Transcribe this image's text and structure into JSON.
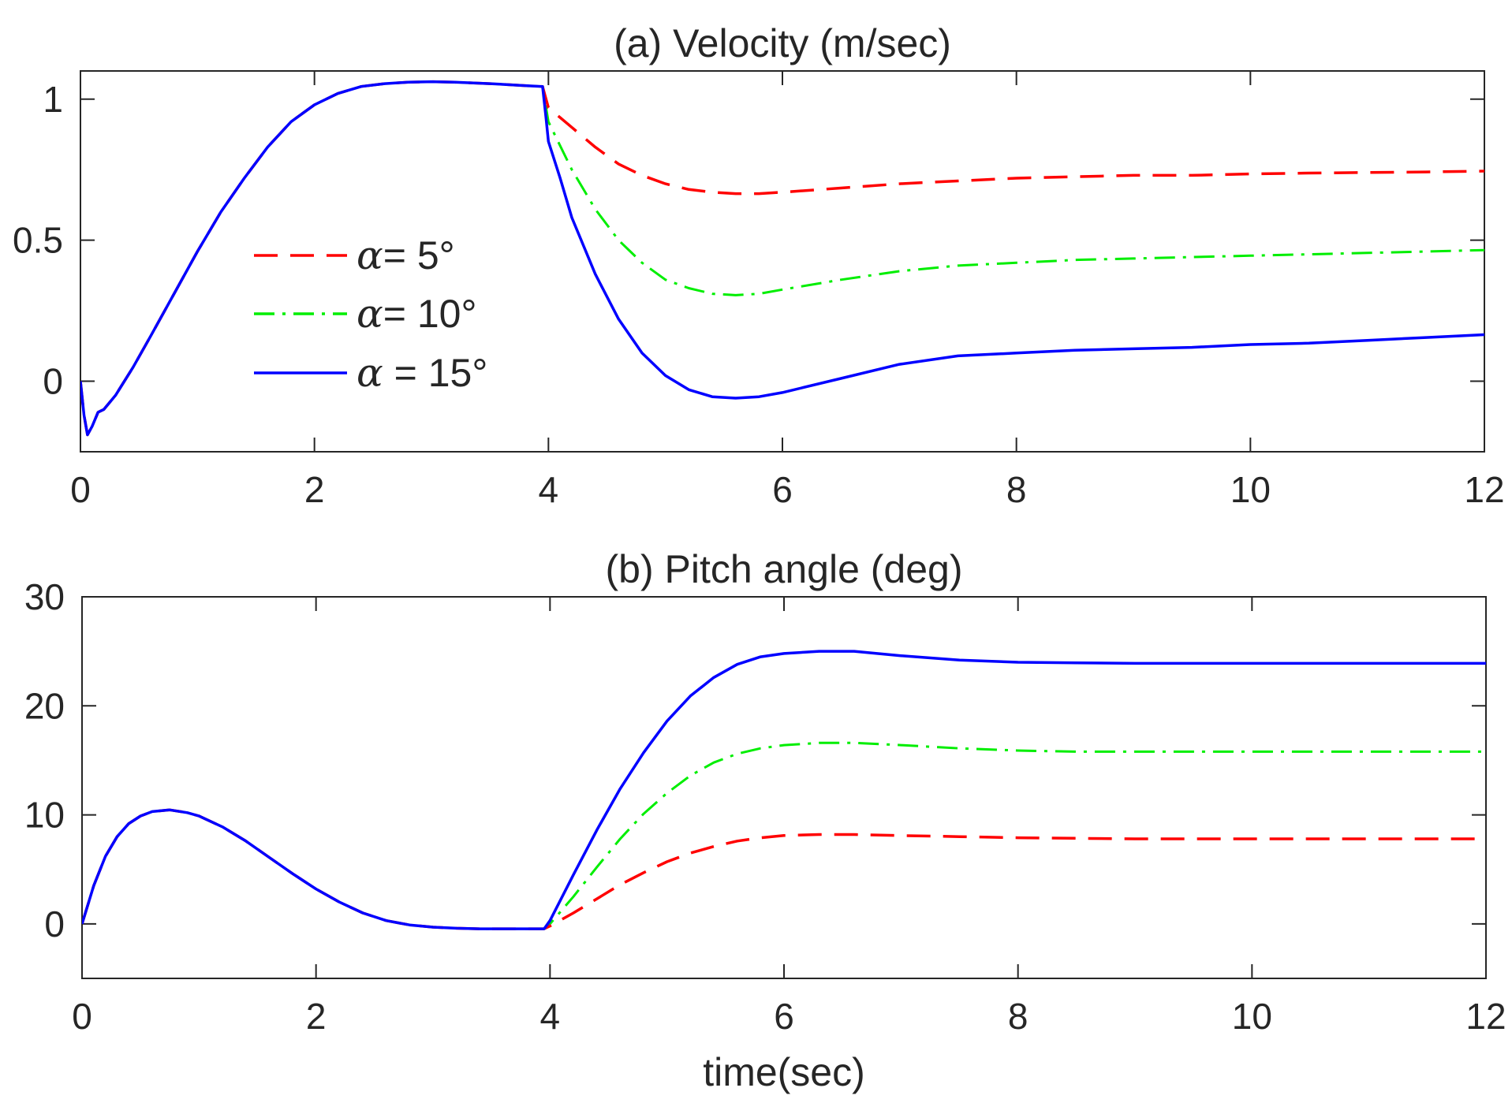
{
  "chart_data": [
    {
      "type": "line",
      "title": "(a) Velocity (m/sec)",
      "xlabel": "",
      "ylabel": "",
      "xlim": [
        0,
        12
      ],
      "ylim": [
        -0.25,
        1.1
      ],
      "xticks": [
        0,
        2,
        4,
        6,
        8,
        10,
        12
      ],
      "xtick_labels": [
        "0",
        "2",
        "4",
        "6",
        "8",
        "10",
        "12"
      ],
      "yticks": [
        0,
        0.5,
        1
      ],
      "ytick_labels": [
        "0",
        "0.5",
        "1"
      ],
      "grid": false,
      "legend": {
        "position": "center-left",
        "entries": [
          {
            "symbol": "α",
            "text": "= 5°"
          },
          {
            "symbol": "α",
            "text": "= 10°"
          },
          {
            "symbol": "α",
            "text": " = 15°"
          }
        ]
      },
      "series": [
        {
          "name": "α= 5°",
          "color": "#ff0000",
          "style": "dashed",
          "x": [
            0,
            0.03,
            0.06,
            0.1,
            0.15,
            0.2,
            0.3,
            0.45,
            0.6,
            0.8,
            1.0,
            1.2,
            1.4,
            1.6,
            1.8,
            2.0,
            2.2,
            2.4,
            2.6,
            2.8,
            3.0,
            3.2,
            3.5,
            3.8,
            3.95,
            4.0,
            4.2,
            4.4,
            4.6,
            4.8,
            5.0,
            5.2,
            5.4,
            5.6,
            5.8,
            6.0,
            6.5,
            7.0,
            7.5,
            8.0,
            8.5,
            9.0,
            9.5,
            10.0,
            10.5,
            11.0,
            11.5,
            12.0
          ],
          "y": [
            0,
            -0.12,
            -0.19,
            -0.16,
            -0.11,
            -0.1,
            -0.05,
            0.05,
            0.16,
            0.31,
            0.46,
            0.6,
            0.72,
            0.83,
            0.92,
            0.98,
            1.02,
            1.045,
            1.055,
            1.06,
            1.062,
            1.06,
            1.055,
            1.048,
            1.045,
            0.97,
            0.9,
            0.83,
            0.77,
            0.73,
            0.7,
            0.68,
            0.67,
            0.665,
            0.665,
            0.67,
            0.685,
            0.7,
            0.71,
            0.72,
            0.725,
            0.73,
            0.73,
            0.735,
            0.738,
            0.74,
            0.742,
            0.745
          ]
        },
        {
          "name": "α= 10°",
          "color": "#00ee00",
          "style": "dashdot",
          "x": [
            0,
            0.03,
            0.06,
            0.1,
            0.15,
            0.2,
            0.3,
            0.45,
            0.6,
            0.8,
            1.0,
            1.2,
            1.4,
            1.6,
            1.8,
            2.0,
            2.2,
            2.4,
            2.6,
            2.8,
            3.0,
            3.2,
            3.5,
            3.8,
            3.95,
            4.0,
            4.2,
            4.4,
            4.6,
            4.8,
            5.0,
            5.2,
            5.4,
            5.6,
            5.8,
            6.0,
            6.5,
            7.0,
            7.5,
            8.0,
            8.5,
            9.0,
            9.5,
            10.0,
            10.5,
            11.0,
            11.5,
            12.0
          ],
          "y": [
            0,
            -0.12,
            -0.19,
            -0.16,
            -0.11,
            -0.1,
            -0.05,
            0.05,
            0.16,
            0.31,
            0.46,
            0.6,
            0.72,
            0.83,
            0.92,
            0.98,
            1.02,
            1.045,
            1.055,
            1.06,
            1.062,
            1.06,
            1.055,
            1.048,
            1.045,
            0.92,
            0.75,
            0.61,
            0.5,
            0.42,
            0.36,
            0.33,
            0.31,
            0.305,
            0.31,
            0.325,
            0.36,
            0.39,
            0.41,
            0.42,
            0.43,
            0.435,
            0.44,
            0.445,
            0.45,
            0.455,
            0.46,
            0.465
          ]
        },
        {
          "name": "α = 15°",
          "color": "#0000ff",
          "style": "solid",
          "x": [
            0,
            0.03,
            0.06,
            0.1,
            0.15,
            0.2,
            0.3,
            0.45,
            0.6,
            0.8,
            1.0,
            1.2,
            1.4,
            1.6,
            1.8,
            2.0,
            2.2,
            2.4,
            2.6,
            2.8,
            3.0,
            3.2,
            3.5,
            3.8,
            3.95,
            3.98,
            4.0,
            4.1,
            4.2,
            4.4,
            4.6,
            4.8,
            5.0,
            5.2,
            5.4,
            5.6,
            5.8,
            6.0,
            6.5,
            7.0,
            7.5,
            8.0,
            8.5,
            9.0,
            9.5,
            10.0,
            10.5,
            11.0,
            11.5,
            12.0
          ],
          "y": [
            0,
            -0.12,
            -0.19,
            -0.16,
            -0.11,
            -0.1,
            -0.05,
            0.05,
            0.16,
            0.31,
            0.46,
            0.6,
            0.72,
            0.83,
            0.92,
            0.98,
            1.02,
            1.045,
            1.055,
            1.06,
            1.062,
            1.06,
            1.055,
            1.048,
            1.045,
            0.93,
            0.85,
            0.72,
            0.58,
            0.38,
            0.22,
            0.1,
            0.02,
            -0.03,
            -0.055,
            -0.06,
            -0.055,
            -0.04,
            0.01,
            0.06,
            0.09,
            0.1,
            0.11,
            0.115,
            0.12,
            0.13,
            0.135,
            0.145,
            0.155,
            0.165
          ]
        }
      ]
    },
    {
      "type": "line",
      "title": "(b) Pitch angle (deg)",
      "xlabel": "time(sec)",
      "ylabel": "",
      "xlim": [
        0,
        12
      ],
      "ylim": [
        -5,
        30
      ],
      "xticks": [
        0,
        2,
        4,
        6,
        8,
        10,
        12
      ],
      "xtick_labels": [
        "0",
        "2",
        "4",
        "6",
        "8",
        "10",
        "12"
      ],
      "yticks": [
        0,
        10,
        20,
        30
      ],
      "ytick_labels": [
        "0",
        "10",
        "20",
        "30"
      ],
      "grid": false,
      "series": [
        {
          "name": "α= 5°",
          "color": "#ff0000",
          "style": "dashed",
          "x": [
            0,
            0.1,
            0.2,
            0.3,
            0.4,
            0.5,
            0.6,
            0.75,
            0.9,
            1.0,
            1.2,
            1.4,
            1.6,
            1.8,
            2.0,
            2.2,
            2.4,
            2.6,
            2.8,
            3.0,
            3.2,
            3.4,
            3.6,
            3.8,
            3.95,
            4.0,
            4.2,
            4.4,
            4.6,
            4.8,
            5.0,
            5.2,
            5.4,
            5.6,
            5.8,
            6.0,
            6.3,
            6.6,
            7.0,
            7.5,
            8.0,
            8.5,
            9.0,
            9.5,
            10.0,
            10.5,
            11.0,
            11.5,
            12.0
          ],
          "y": [
            0,
            3.5,
            6.2,
            8.0,
            9.2,
            9.9,
            10.3,
            10.45,
            10.2,
            9.9,
            8.9,
            7.6,
            6.1,
            4.6,
            3.2,
            2.0,
            1.0,
            0.3,
            -0.1,
            -0.3,
            -0.4,
            -0.45,
            -0.45,
            -0.45,
            -0.45,
            -0.2,
            1.0,
            2.3,
            3.6,
            4.7,
            5.7,
            6.5,
            7.1,
            7.6,
            7.9,
            8.1,
            8.2,
            8.2,
            8.1,
            8.0,
            7.9,
            7.85,
            7.8,
            7.8,
            7.8,
            7.8,
            7.8,
            7.8,
            7.8
          ]
        },
        {
          "name": "α= 10°",
          "color": "#00ee00",
          "style": "dashdot",
          "x": [
            0,
            0.1,
            0.2,
            0.3,
            0.4,
            0.5,
            0.6,
            0.75,
            0.9,
            1.0,
            1.2,
            1.4,
            1.6,
            1.8,
            2.0,
            2.2,
            2.4,
            2.6,
            2.8,
            3.0,
            3.2,
            3.4,
            3.6,
            3.8,
            3.95,
            4.0,
            4.2,
            4.4,
            4.6,
            4.8,
            5.0,
            5.2,
            5.4,
            5.6,
            5.8,
            6.0,
            6.3,
            6.6,
            7.0,
            7.5,
            8.0,
            8.5,
            9.0,
            9.5,
            10.0,
            10.5,
            11.0,
            11.5,
            12.0
          ],
          "y": [
            0,
            3.5,
            6.2,
            8.0,
            9.2,
            9.9,
            10.3,
            10.45,
            10.2,
            9.9,
            8.9,
            7.6,
            6.1,
            4.6,
            3.2,
            2.0,
            1.0,
            0.3,
            -0.1,
            -0.3,
            -0.4,
            -0.45,
            -0.45,
            -0.45,
            -0.45,
            0.0,
            2.5,
            5.2,
            7.8,
            10.1,
            12.0,
            13.6,
            14.8,
            15.6,
            16.1,
            16.4,
            16.6,
            16.6,
            16.4,
            16.1,
            15.9,
            15.8,
            15.8,
            15.8,
            15.8,
            15.8,
            15.8,
            15.8,
            15.8
          ]
        },
        {
          "name": "α = 15°",
          "color": "#0000ff",
          "style": "solid",
          "x": [
            0,
            0.1,
            0.2,
            0.3,
            0.4,
            0.5,
            0.6,
            0.75,
            0.9,
            1.0,
            1.2,
            1.4,
            1.6,
            1.8,
            2.0,
            2.2,
            2.4,
            2.6,
            2.8,
            3.0,
            3.2,
            3.4,
            3.6,
            3.8,
            3.95,
            4.0,
            4.2,
            4.4,
            4.6,
            4.8,
            5.0,
            5.2,
            5.4,
            5.6,
            5.8,
            6.0,
            6.3,
            6.6,
            7.0,
            7.5,
            8.0,
            8.5,
            9.0,
            9.5,
            10.0,
            10.5,
            11.0,
            11.5,
            12.0
          ],
          "y": [
            0,
            3.5,
            6.2,
            8.0,
            9.2,
            9.9,
            10.3,
            10.45,
            10.2,
            9.9,
            8.9,
            7.6,
            6.1,
            4.6,
            3.2,
            2.0,
            1.0,
            0.3,
            -0.1,
            -0.3,
            -0.4,
            -0.45,
            -0.45,
            -0.45,
            -0.45,
            0.3,
            4.5,
            8.6,
            12.4,
            15.7,
            18.6,
            20.9,
            22.6,
            23.8,
            24.5,
            24.8,
            25.0,
            25.0,
            24.6,
            24.2,
            24.0,
            23.95,
            23.9,
            23.9,
            23.9,
            23.9,
            23.9,
            23.9,
            23.9
          ]
        }
      ]
    }
  ]
}
